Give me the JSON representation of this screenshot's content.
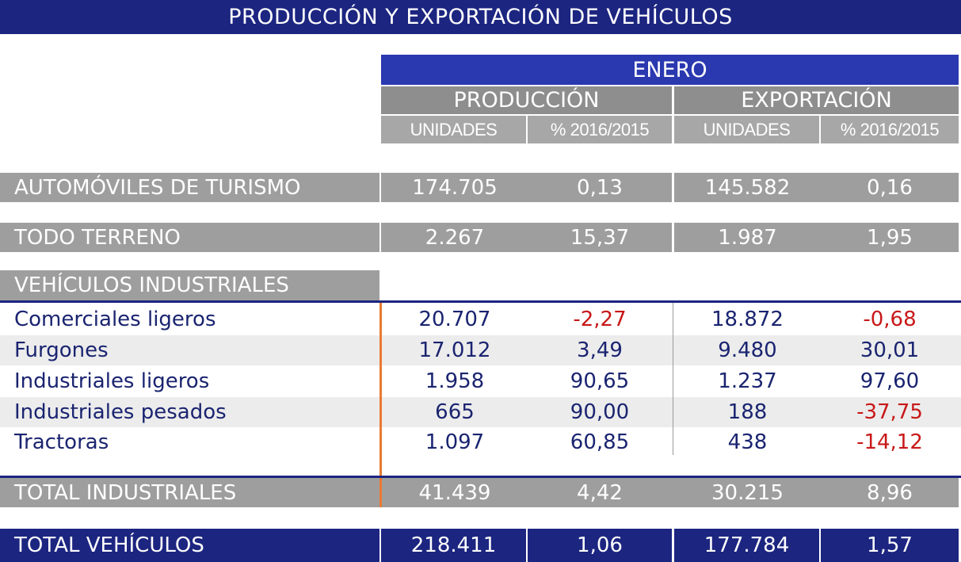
{
  "title": "PRODUCCIÓN Y EXPORTACIÓN DE VEHÍCULOS",
  "header": {
    "period": "ENERO",
    "groups": [
      "PRODUCCIÓN",
      "EXPORTACIÓN"
    ],
    "subcolumns": [
      "UNIDADES",
      "% 2016/2015",
      "UNIDADES",
      "% 2016/2015"
    ]
  },
  "rows": {
    "turismo": {
      "label": "AUTOMÓVILES DE TURISMO",
      "values": [
        "174.705",
        "0,13",
        "145.582",
        "0,16"
      ]
    },
    "todo_terreno": {
      "label": "TODO TERRENO",
      "values": [
        "2.267",
        "15,37",
        "1.987",
        "1,95"
      ]
    },
    "industriales_section": "VEHÍCULOS INDUSTRIALES",
    "industriales": [
      {
        "label": "Comerciales ligeros",
        "values": [
          "20.707",
          "-2,27",
          "18.872",
          "-0,68"
        ]
      },
      {
        "label": "Furgones",
        "values": [
          "17.012",
          "3,49",
          "9.480",
          "30,01"
        ]
      },
      {
        "label": "Industriales ligeros",
        "values": [
          "1.958",
          "90,65",
          "1.237",
          "97,60"
        ]
      },
      {
        "label": "Industriales pesados",
        "values": [
          "665",
          "90,00",
          "188",
          "-37,75"
        ]
      },
      {
        "label": "Tractoras",
        "values": [
          "1.097",
          "60,85",
          "438",
          "-14,12"
        ]
      }
    ],
    "total_industriales": {
      "label": "TOTAL INDUSTRIALES",
      "values": [
        "41.439",
        "4,42",
        "30.215",
        "8,96"
      ]
    },
    "total_vehiculos": {
      "label": "TOTAL VEHÍCULOS",
      "values": [
        "218.411",
        "1,06",
        "177.784",
        "1,57"
      ]
    }
  },
  "colors": {
    "navy": "#1c2580",
    "header_blue": "#2a39b0",
    "negative": "#c81818",
    "accent_orange": "#ea7a32"
  }
}
